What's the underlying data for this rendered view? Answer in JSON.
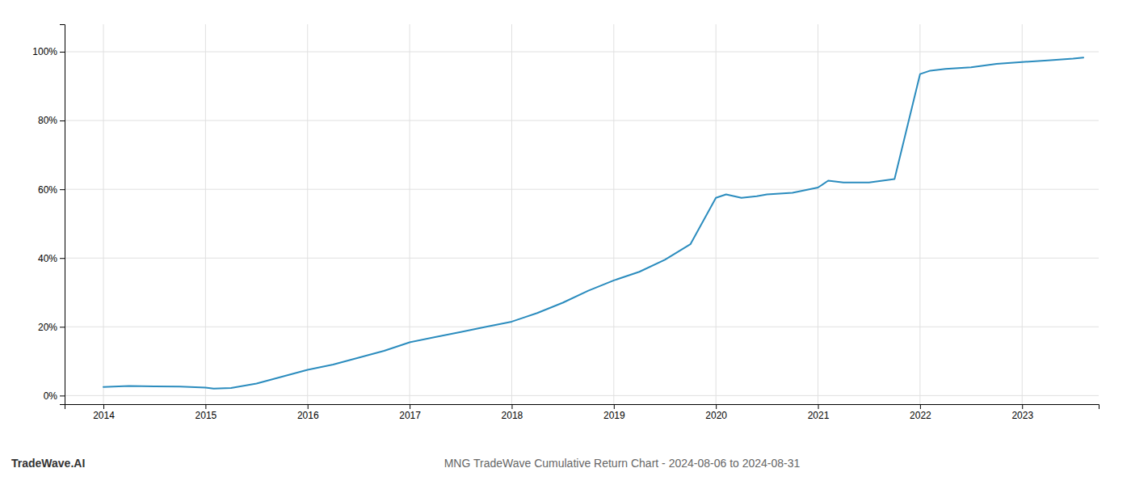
{
  "chart_data": {
    "type": "line",
    "title": "MNG TradeWave Cumulative Return Chart - 2024-08-06 to 2024-08-31",
    "annotations": [
      "TradeWave.AI"
    ],
    "color": "#2b8cbe",
    "x": [
      2014.0,
      2014.25,
      2014.5,
      2014.75,
      2015.0,
      2015.08,
      2015.25,
      2015.5,
      2015.75,
      2016.0,
      2016.25,
      2016.5,
      2016.75,
      2017.0,
      2017.25,
      2017.5,
      2017.75,
      2018.0,
      2018.1,
      2018.25,
      2018.5,
      2018.75,
      2019.0,
      2019.25,
      2019.5,
      2019.75,
      2020.0,
      2020.1,
      2020.25,
      2020.4,
      2020.5,
      2020.75,
      2021.0,
      2021.1,
      2021.25,
      2021.5,
      2021.75,
      2022.0,
      2022.1,
      2022.25,
      2022.5,
      2022.75,
      2023.0,
      2023.25,
      2023.5,
      2023.6
    ],
    "values": [
      2.5,
      2.8,
      2.7,
      2.6,
      2.3,
      2.0,
      2.2,
      3.5,
      5.5,
      7.5,
      9.0,
      11.0,
      13.0,
      15.5,
      17.0,
      18.5,
      20.0,
      21.5,
      22.5,
      24.0,
      27.0,
      30.5,
      33.5,
      36.0,
      39.5,
      44.0,
      57.5,
      58.5,
      57.5,
      58.0,
      58.5,
      59.0,
      60.5,
      62.5,
      62.0,
      62.0,
      63.0,
      93.5,
      94.5,
      95.0,
      95.5,
      96.5,
      97.0,
      97.5,
      98.0,
      98.3
    ],
    "xlim": [
      2013.62,
      2023.75
    ],
    "ylim": [
      -2.5,
      108
    ],
    "xticks": [
      2014,
      2015,
      2016,
      2017,
      2018,
      2019,
      2020,
      2021,
      2022,
      2023
    ],
    "yticks": [
      {
        "value": 0,
        "label": "0%"
      },
      {
        "value": 20,
        "label": "20%"
      },
      {
        "value": 40,
        "label": "40%"
      },
      {
        "value": 60,
        "label": "60%"
      },
      {
        "value": 80,
        "label": "80%"
      },
      {
        "value": 100,
        "label": "100%"
      }
    ],
    "grid": true
  }
}
